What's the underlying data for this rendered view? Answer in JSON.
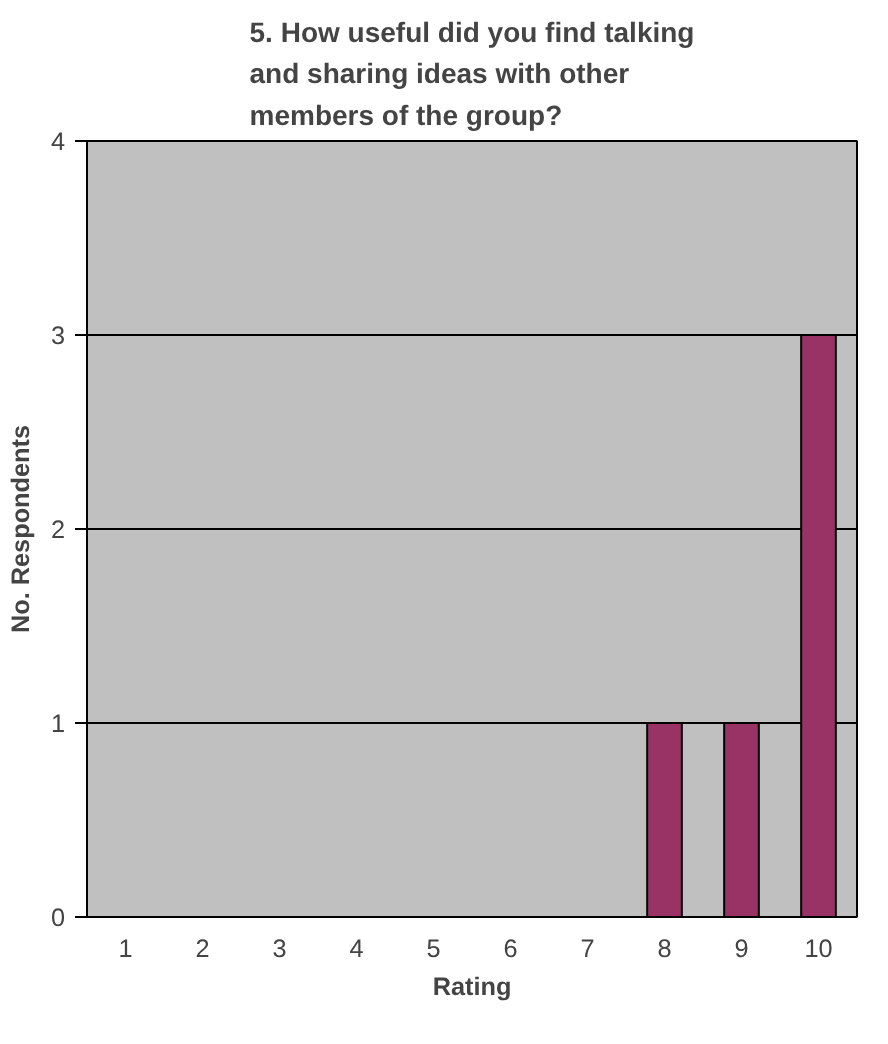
{
  "chart_data": {
    "type": "bar",
    "title": "5. How useful did you find talking and sharing ideas with other members of the group?",
    "xlabel": "Rating",
    "ylabel": "No. Respondents",
    "categories": [
      "1",
      "2",
      "3",
      "4",
      "5",
      "6",
      "7",
      "8",
      "9",
      "10"
    ],
    "values": [
      0,
      0,
      0,
      0,
      0,
      0,
      0,
      1,
      1,
      3
    ],
    "color": "#993366",
    "ylim": [
      0,
      4
    ],
    "yticks": [
      0,
      1,
      2,
      3,
      4
    ],
    "grid": "y"
  }
}
